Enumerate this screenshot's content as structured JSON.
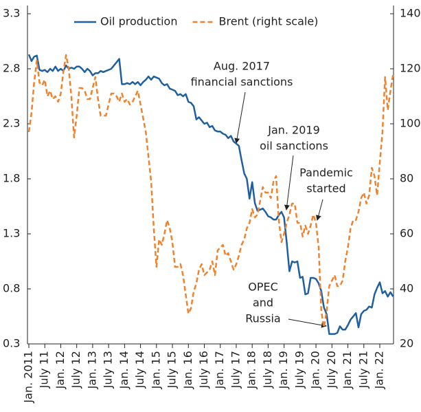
{
  "chart_data": {
    "type": "line",
    "categories": [
      "Jan. 2011",
      null,
      null,
      null,
      null,
      null,
      "July 11",
      null,
      null,
      null,
      null,
      null,
      "Jan. 12",
      null,
      null,
      null,
      null,
      null,
      "July 12",
      null,
      null,
      null,
      null,
      null,
      "Jan. 13",
      null,
      null,
      null,
      null,
      null,
      "July 13",
      null,
      null,
      null,
      null,
      null,
      "Jan. 14",
      null,
      null,
      null,
      null,
      null,
      "July 14",
      null,
      null,
      null,
      null,
      null,
      "Jan. 15",
      null,
      null,
      null,
      null,
      null,
      "July 15",
      null,
      null,
      null,
      null,
      null,
      "Jan. 16",
      null,
      null,
      null,
      null,
      null,
      "July 16",
      null,
      null,
      null,
      null,
      null,
      "Jan. 17",
      null,
      null,
      null,
      null,
      null,
      "July 17",
      null,
      null,
      null,
      null,
      null,
      "Jan. 18",
      null,
      null,
      null,
      null,
      null,
      "July 18",
      null,
      null,
      null,
      null,
      null,
      "Jan. 19",
      null,
      null,
      null,
      null,
      null,
      "July 19",
      null,
      null,
      null,
      null,
      null,
      "Jan. 20",
      null,
      null,
      null,
      null,
      null,
      "July 20",
      null,
      null,
      null,
      null,
      null,
      "Jan. 21",
      null,
      null,
      null,
      null,
      null,
      "July 21",
      null,
      null,
      null,
      null,
      null,
      "Jan. 22",
      null,
      null,
      null,
      null,
      null
    ],
    "series": [
      {
        "name": "Oil production",
        "color": "#1f5f9f",
        "dashed": false,
        "values": [
          2.93,
          2.87,
          2.91,
          2.92,
          2.79,
          2.78,
          2.79,
          2.77,
          2.8,
          2.78,
          2.82,
          2.78,
          2.8,
          2.78,
          2.83,
          2.8,
          2.81,
          2.8,
          2.82,
          2.82,
          2.8,
          2.77,
          2.8,
          2.78,
          2.74,
          2.76,
          2.76,
          2.78,
          2.77,
          2.78,
          2.79,
          2.8,
          2.83,
          2.86,
          2.89,
          2.66,
          2.66,
          2.67,
          2.66,
          2.68,
          2.66,
          2.68,
          2.65,
          2.68,
          2.7,
          2.73,
          2.7,
          2.73,
          2.72,
          2.71,
          2.67,
          2.65,
          2.66,
          2.62,
          2.61,
          2.6,
          2.56,
          2.57,
          2.55,
          2.57,
          2.5,
          2.49,
          2.46,
          2.34,
          2.36,
          2.33,
          2.3,
          2.31,
          2.27,
          2.28,
          2.24,
          2.23,
          2.23,
          2.21,
          2.2,
          2.17,
          2.19,
          2.14,
          2.12,
          2.1,
          1.97,
          1.85,
          1.8,
          1.62,
          1.77,
          1.58,
          1.51,
          1.52,
          1.53,
          1.5,
          1.46,
          1.45,
          1.43,
          1.43,
          1.47,
          1.5,
          1.45,
          1.22,
          0.96,
          1.05,
          1.04,
          1.05,
          0.9,
          0.91,
          0.75,
          0.76,
          0.9,
          0.9,
          0.89,
          0.85,
          0.78,
          0.63,
          0.57,
          0.39,
          0.39,
          0.39,
          0.4,
          0.46,
          0.43,
          0.43,
          0.47,
          0.52,
          0.55,
          0.58,
          0.45,
          0.57,
          0.6,
          0.61,
          0.64,
          0.63,
          0.75,
          0.81,
          0.86,
          0.76,
          0.78,
          0.73,
          0.77,
          0.73
        ]
      },
      {
        "name": "Brent (right scale)",
        "color": "#f0822d",
        "dashed": true,
        "axis": "y2",
        "values": [
          97,
          104,
          115,
          123,
          115,
          114,
          116,
          110,
          112,
          109,
          110,
          108,
          111,
          119,
          125,
          120,
          110,
          95,
          103,
          113,
          113,
          112,
          109,
          109,
          113,
          117,
          109,
          103,
          103,
          103,
          107,
          111,
          111,
          110,
          108,
          111,
          108,
          109,
          107,
          108,
          110,
          112,
          107,
          102,
          97,
          88,
          79,
          62,
          48,
          58,
          56,
          60,
          65,
          62,
          57,
          48,
          48,
          49,
          45,
          38,
          31,
          33,
          39,
          42,
          47,
          49,
          45,
          46,
          47,
          50,
          45,
          54,
          55,
          56,
          52,
          53,
          50,
          47,
          49,
          52,
          56,
          58,
          62,
          64,
          69,
          66,
          67,
          72,
          77,
          75,
          75,
          73,
          79,
          81,
          65,
          57,
          60,
          64,
          67,
          71,
          71,
          64,
          64,
          59,
          63,
          60,
          63,
          67,
          64,
          55,
          32,
          26,
          32,
          41,
          43,
          45,
          41,
          41,
          43,
          50,
          55,
          62,
          65,
          65,
          68,
          73,
          75,
          71,
          74,
          84,
          81,
          74,
          86,
          97,
          117,
          105,
          112,
          118
        ]
      }
    ],
    "ylim": [
      0.3,
      3.3
    ],
    "yticks": [
      0.3,
      0.8,
      1.3,
      1.8,
      2.3,
      2.8,
      3.3
    ],
    "y2lim": [
      20,
      140
    ],
    "y2ticks": [
      20,
      40,
      60,
      80,
      100,
      120,
      140
    ],
    "legend": "top",
    "annotations": [
      [
        "Aug. 2017",
        "financial sanctions"
      ],
      [
        "Jan. 2019",
        "oil sanctions"
      ],
      [
        "Pandemic",
        "started"
      ],
      [
        "OPEC",
        "and",
        "Russia"
      ]
    ]
  }
}
